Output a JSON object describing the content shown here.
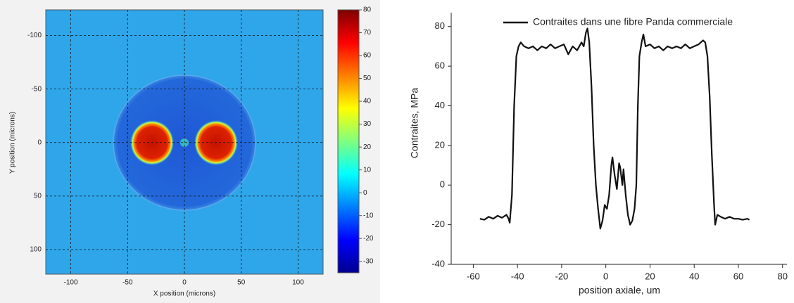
{
  "chart_data": [
    {
      "type": "heatmap",
      "xlabel": "X position (microns)",
      "ylabel": "Y position (microns)",
      "xlim": [
        -122,
        122
      ],
      "ylim": [
        -124,
        123
      ],
      "y_inverted": true,
      "xticks": [
        -100,
        -50,
        0,
        50,
        100
      ],
      "yticks": [
        -100,
        -50,
        0,
        50,
        100
      ],
      "grid": true,
      "colorbar": {
        "lim": [
          -35,
          80
        ],
        "ticks": [
          80,
          70,
          60,
          50,
          40,
          30,
          20,
          10,
          0,
          -10,
          -20,
          -30
        ],
        "colors": [
          "#00008f",
          "#0000ff",
          "#007fff",
          "#00ffff",
          "#7fff7f",
          "#ffff00",
          "#ff7f00",
          "#ff0000",
          "#7f0000"
        ]
      }
    },
    {
      "type": "line",
      "xlabel": "position axiale, um",
      "ylabel": "Contraites, MPa",
      "xlim": [
        -70,
        82
      ],
      "ylim": [
        -40,
        87
      ],
      "xticks": [
        -60,
        -40,
        -20,
        0,
        20,
        40,
        60,
        80
      ],
      "yticks": [
        -40,
        -20,
        0,
        20,
        40,
        60,
        80
      ],
      "legend": "upper right",
      "x": [
        -57,
        -55,
        -53,
        -51,
        -49,
        -47,
        -45,
        -44,
        -43.5,
        -42.5,
        -41.5,
        -40.5,
        -39.5,
        -38.5,
        -37,
        -35,
        -33,
        -31,
        -29,
        -27,
        -25,
        -23,
        -21,
        -19,
        -17,
        -15,
        -13,
        -11,
        -10,
        -9,
        -8.3,
        -7.5,
        -6.5,
        -5.5,
        -4.5,
        -3.5,
        -2.5,
        -1.5,
        -0.5,
        0.5,
        1.5,
        2.5,
        3,
        4,
        5,
        6,
        6.5,
        7.5,
        8,
        9,
        10,
        11,
        12,
        13,
        13.8,
        14.5,
        15.2,
        16.2,
        17,
        18,
        20,
        22,
        24,
        26,
        28,
        30,
        32,
        34,
        36,
        38,
        40,
        42,
        44,
        45,
        46,
        47,
        48,
        49,
        49.5,
        50.5,
        52,
        54,
        56,
        58,
        60,
        62,
        64,
        65
      ],
      "series": [
        {
          "name": "Contraites dans une fibre Panda commerciale",
          "color": "#111111",
          "values": [
            -17,
            -17.5,
            -16,
            -17,
            -15.5,
            -16.5,
            -15,
            -17,
            -19,
            -5,
            40,
            65,
            70,
            72,
            70,
            69,
            70,
            68,
            70,
            69,
            71,
            69,
            70,
            71,
            66,
            70,
            68,
            72,
            70,
            77,
            79,
            72,
            50,
            20,
            0,
            -12,
            -22,
            -18,
            -10,
            -12,
            -5,
            10,
            14,
            5,
            -2,
            11,
            9,
            0,
            8,
            -5,
            -15,
            -20,
            -18,
            -12,
            0,
            40,
            65,
            72,
            76,
            70,
            71,
            69,
            70,
            68,
            70,
            69,
            70,
            69,
            71,
            69,
            70,
            71,
            73,
            72,
            65,
            45,
            15,
            -10,
            -20,
            -15,
            -16,
            -17,
            -16,
            -17,
            -17,
            -17.5,
            -17,
            -17.5
          ]
        }
      ]
    }
  ]
}
